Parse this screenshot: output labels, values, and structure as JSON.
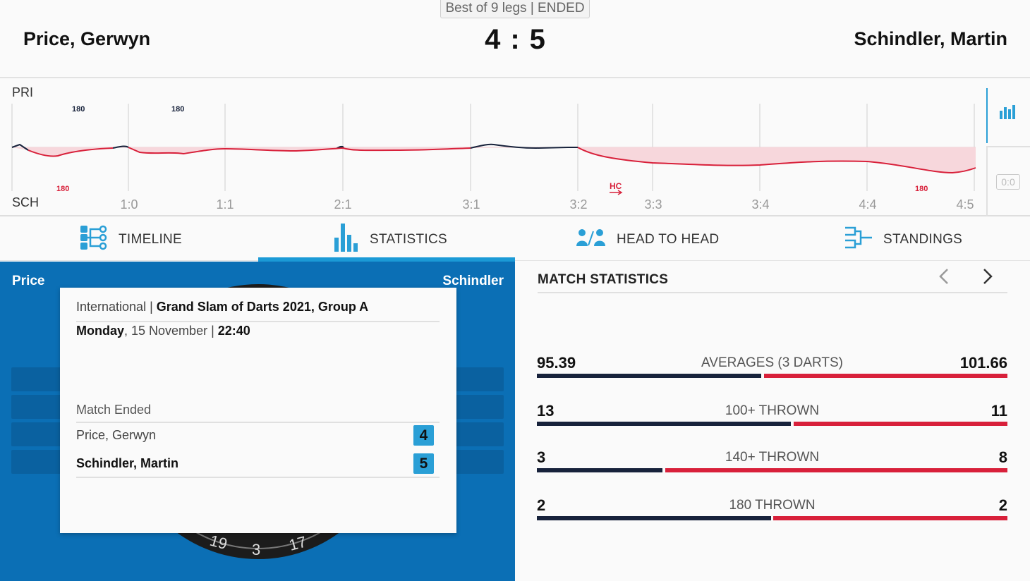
{
  "match": {
    "format": "Best of 9 legs | ENDED",
    "home_player": "Price, Gerwyn",
    "away_player": "Schindler, Martin",
    "home_score": "4",
    "score_sep": ":",
    "away_score": "5"
  },
  "momentum": {
    "top_label": "PRI",
    "bottom_label": "SCH",
    "legs": [
      "1:0",
      "1:1",
      "2:1",
      "3:1",
      "3:2",
      "3:3",
      "3:4",
      "4:4",
      "4:5"
    ],
    "home_markers": [
      "180",
      "180"
    ],
    "away_markers": [
      "180",
      "180"
    ],
    "hc_marker": "HC",
    "zero_badge": "0:0"
  },
  "tabs": [
    {
      "label": "TIMELINE"
    },
    {
      "label": "STATISTICS"
    },
    {
      "label": "HEAD TO HEAD"
    },
    {
      "label": "STANDINGS"
    }
  ],
  "board": {
    "home_short": "Price",
    "away_short": "Schindler",
    "dart_numbers": [
      "19",
      "3",
      "17"
    ]
  },
  "info_card": {
    "category": "International",
    "category_sep": " | ",
    "tournament": "Grand Slam of Darts 2021, Group A",
    "day": "Monday",
    "date": ", 15 November | ",
    "time": "22:40",
    "status": "Match Ended",
    "home_name": "Price, Gerwyn",
    "home_score": "4",
    "away_name": "Schindler, Martin",
    "away_score": "5"
  },
  "stats": {
    "title": "MATCH STATISTICS",
    "prev_icon": "chevron-left-icon",
    "next_icon": "chevron-right-icon",
    "rows": [
      {
        "label": "AVERAGES (3 DARTS)",
        "home": "95.39",
        "away": "101.66",
        "home_share": 0.48
      },
      {
        "label": "100+ THROWN",
        "home": "13",
        "away": "11",
        "home_share": 0.542
      },
      {
        "label": "140+ THROWN",
        "home": "3",
        "away": "8",
        "home_share": 0.27
      },
      {
        "label": "180 THROWN",
        "home": "2",
        "away": "2",
        "home_share": 0.5
      }
    ]
  },
  "colors": {
    "accent": "#1b9ad6",
    "panel_blue": "#0b6fb5",
    "home": "#17223b",
    "away": "#d8203a"
  }
}
